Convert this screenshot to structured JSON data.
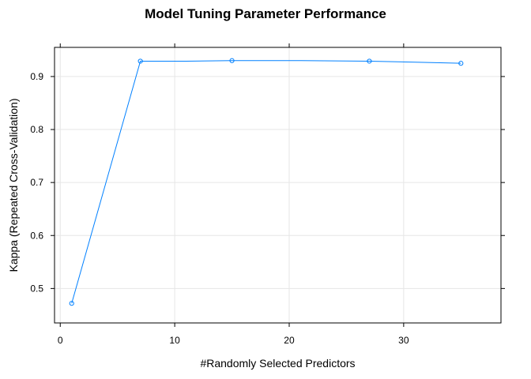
{
  "chart_data": {
    "type": "line",
    "title": "Model Tuning Parameter Performance",
    "xlabel": "#Randomly Selected Predictors",
    "ylabel": "Kappa (Repeated Cross-Validation)",
    "xlim": [
      -0.5,
      38.5
    ],
    "ylim": [
      0.435,
      0.955
    ],
    "xticks": [
      0,
      10,
      20,
      30
    ],
    "yticks": [
      0.5,
      0.6,
      0.7,
      0.8,
      0.9
    ],
    "xtick_labels": [
      "0",
      "10",
      "20",
      "30"
    ],
    "ytick_labels": [
      "0.5",
      "0.6",
      "0.7",
      "0.8",
      "0.9"
    ],
    "grid": true,
    "legend": "none",
    "line_color": "#0080ff",
    "series": [
      {
        "x": [
          1,
          7,
          11,
          15,
          21,
          27,
          31,
          35
        ],
        "y": [
          0.472,
          0.929,
          0.929,
          0.93,
          0.93,
          0.929,
          0.927,
          0.925
        ],
        "markers": [
          true,
          true,
          false,
          true,
          false,
          true,
          false,
          true
        ]
      }
    ]
  }
}
